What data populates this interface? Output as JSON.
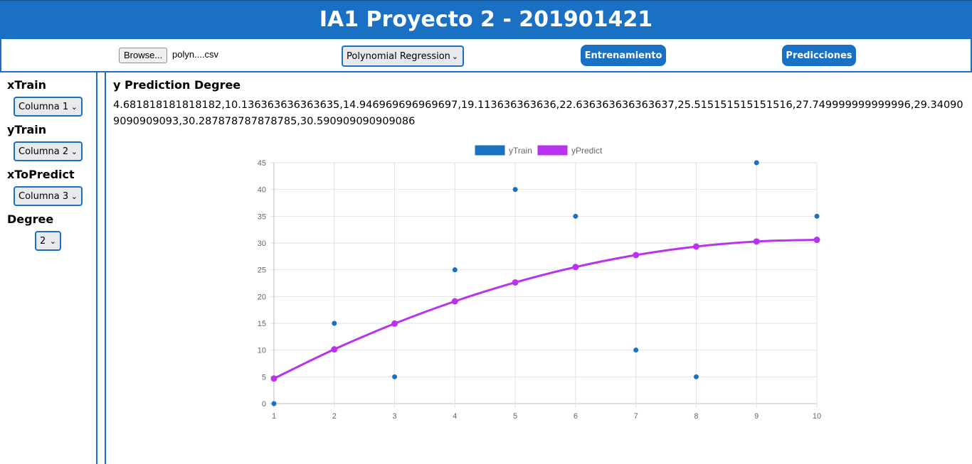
{
  "header": {
    "title": "IA1 Proyecto 2 - 201901421"
  },
  "toolbar": {
    "browse_label": "Browse...",
    "file_name": "polyn....csv",
    "algorithm_selected": "Polynomial Regression",
    "train_label": "Entrenamiento",
    "predict_label": "Predicciones"
  },
  "sidebar": {
    "xtrain_label": "xTrain",
    "xtrain_value": "Columna 1",
    "ytrain_label": "yTrain",
    "ytrain_value": "Columna 2",
    "xtopredict_label": "xToPredict",
    "xtopredict_value": "Columna 3",
    "degree_label": "Degree",
    "degree_value": "2"
  },
  "main": {
    "title": "y Prediction Degree",
    "prediction_text": "4.681818181818182,10.136363636363635,14.946969696969697,19.113636363636,22.636363636363637,25.515151515151516,27.749999999999996,29.340909090909093,30.287878787878785,30.590909090909086"
  },
  "colors": {
    "accent": "#1a70c2",
    "ytrain": "#1a70c2",
    "ypredict": "#b832f0"
  },
  "chart_data": {
    "type": "line",
    "x": [
      1,
      2,
      3,
      4,
      5,
      6,
      7,
      8,
      9,
      10
    ],
    "series": [
      {
        "name": "yTrain",
        "style": "scatter",
        "values": [
          0,
          15,
          5,
          25,
          40,
          35,
          10,
          5,
          45,
          35
        ]
      },
      {
        "name": "yPredict",
        "style": "line",
        "values": [
          4.681818181818182,
          10.136363636363635,
          14.946969696969697,
          19.11363636363636,
          22.636363636363637,
          25.515151515151516,
          27.749999999999996,
          29.340909090909093,
          30.287878787878785,
          30.590909090909086
        ]
      }
    ],
    "xlim": [
      1,
      10
    ],
    "ylim": [
      0,
      45
    ],
    "yticks": [
      0,
      5,
      10,
      15,
      20,
      25,
      30,
      35,
      40,
      45
    ],
    "legend": "top-center",
    "grid": true
  }
}
